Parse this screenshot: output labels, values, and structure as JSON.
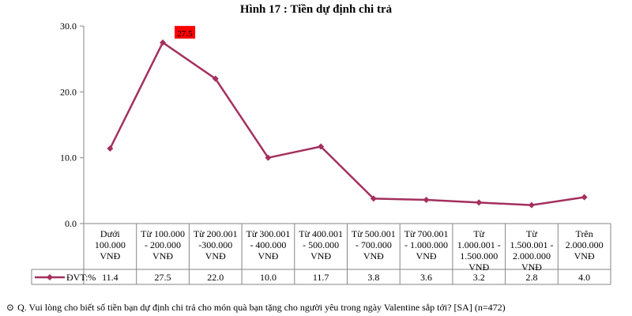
{
  "chart_data": {
    "type": "line",
    "title": "Hình 17 : Tiền dự định chi trả",
    "categories": [
      [
        "Dưới",
        "100.000",
        "VNĐ"
      ],
      [
        "Từ 100.000",
        "- 200.000",
        "VNĐ"
      ],
      [
        "Từ 200.001",
        "-300.000",
        "VNĐ"
      ],
      [
        "Từ 300.001",
        "- 400.000",
        "VNĐ"
      ],
      [
        "Từ 400.001",
        "- 500.000",
        "VNĐ"
      ],
      [
        "Từ 500.001",
        "- 700.000",
        "VNĐ"
      ],
      [
        "Từ 700.001",
        "- 1.000.000",
        "VNĐ"
      ],
      [
        "Từ",
        "1.000.001 -",
        "1.500.000",
        "VNĐ"
      ],
      [
        "Từ",
        "1.500.001 -",
        "2.000.000",
        "VNĐ"
      ],
      [
        "Trên",
        "2.000.000",
        "VNĐ"
      ]
    ],
    "series": [
      {
        "name": "ĐVT:%",
        "color": "#a3305e",
        "values": [
          11.4,
          27.5,
          22.0,
          10.0,
          11.7,
          3.8,
          3.6,
          3.2,
          2.8,
          4.0
        ],
        "display_values": [
          "11.4",
          "27.5",
          "22.0",
          "10.0",
          "11.7",
          "3.8",
          "3.6",
          "3.2",
          "2.8",
          "4.0"
        ]
      }
    ],
    "ylim": [
      0,
      30
    ],
    "yticks": [
      "0.0",
      "10.0",
      "20.0",
      "30.0"
    ],
    "highlight": {
      "index": 1,
      "label": "27.5",
      "color": "#ff0000"
    },
    "data_table": true,
    "grid": false
  },
  "footnote": {
    "icon": "circled-dot-icon",
    "text": "Q. Vui lòng cho biết số tiền bạn dự định chi trả cho món quà bạn tặng cho người yêu trong ngày Valentine sắp tới? [SA] (n=472)"
  }
}
